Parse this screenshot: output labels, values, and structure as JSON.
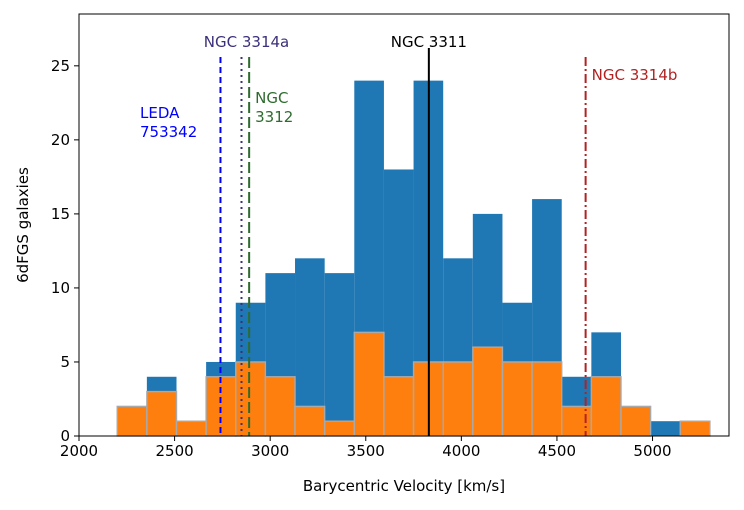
{
  "chart_data": {
    "type": "bar",
    "xlabel": "Barycentric Velocity [km/s]",
    "ylabel": "6dFGS galaxies",
    "xlim": [
      2000,
      5400
    ],
    "ylim": [
      0,
      28.5
    ],
    "xticks": [
      2000,
      2500,
      3000,
      3500,
      4000,
      4500,
      5000
    ],
    "yticks": [
      0,
      5,
      10,
      15,
      20,
      25
    ],
    "xtick_labels": [
      "2000",
      "2500",
      "3000",
      "3500",
      "4000",
      "4500",
      "5000"
    ],
    "ytick_labels": [
      "0",
      "5",
      "10",
      "15",
      "20",
      "25"
    ],
    "bin_edges": [
      2200,
      2355,
      2510,
      2665,
      2820,
      2975,
      3130,
      3285,
      3440,
      3595,
      3750,
      3905,
      4060,
      4215,
      4370,
      4525,
      4680,
      4835,
      4990,
      5145,
      5300
    ],
    "series": [
      {
        "values": [
          2,
          4,
          1,
          5,
          9,
          11,
          12,
          11,
          24,
          18,
          24,
          12,
          15,
          9,
          16,
          4,
          7,
          2,
          1,
          1
        ],
        "color": "#1f77b4"
      },
      {
        "values": [
          2,
          3,
          1,
          4,
          5,
          4,
          2,
          1,
          7,
          4,
          5,
          5,
          6,
          5,
          5,
          2,
          4,
          2,
          0,
          1
        ],
        "color": "#ff7f0e"
      }
    ],
    "reference_lines": [
      {
        "x": 2740,
        "label": "LEDA\n753342",
        "color": "#0000ff",
        "style": "dashed",
        "label_side": "left"
      },
      {
        "x": 2850,
        "label": "NGC 3314a",
        "color": "#3d2f7a",
        "style": "dotted",
        "label_side": "top"
      },
      {
        "x": 2890,
        "label": "NGC\n3312",
        "color": "#2e6b2e",
        "style": "longdash",
        "label_side": "right"
      },
      {
        "x": 3830,
        "label": "NGC 3311",
        "color": "#000000",
        "style": "solid",
        "label_side": "top"
      },
      {
        "x": 4650,
        "label": "NGC 3314b",
        "color": "#b22222",
        "style": "dashdot",
        "label_side": "right"
      }
    ]
  }
}
